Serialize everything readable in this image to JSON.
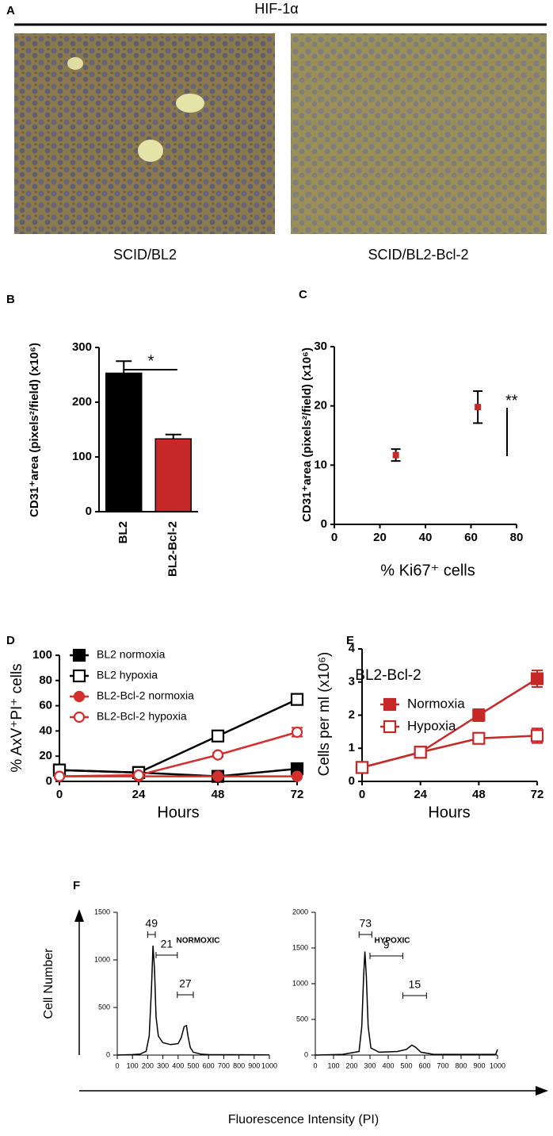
{
  "panel_a": {
    "letter": "A",
    "title": "HIF-1α",
    "captions": [
      "SCID/BL2",
      "SCID/BL2-Bcl-2"
    ]
  },
  "chart_data": [
    {
      "type": "bar",
      "panel": "B",
      "ylabel": "CD31⁺area (pixels²/field) (x10⁶)",
      "categories": [
        "BL2",
        "BL2-Bcl-2"
      ],
      "values": [
        253,
        133
      ],
      "errors": [
        22,
        8
      ],
      "colors": [
        "#000000",
        "#c62828"
      ],
      "ylim": [
        0,
        300
      ],
      "yticks": [
        0,
        100,
        200,
        300
      ],
      "significance": "*"
    },
    {
      "type": "scatter",
      "panel": "C",
      "xlabel": "% Ki67⁺ cells",
      "ylabel": "CD31⁺area (pixels²/field) (x10⁶)",
      "x": [
        27,
        63
      ],
      "values": [
        11.7,
        19.8
      ],
      "errors": [
        1,
        2.7
      ],
      "color": "#c62828",
      "xlim": [
        0,
        80
      ],
      "xticks": [
        0,
        20,
        40,
        60,
        80
      ],
      "ylim": [
        0,
        30
      ],
      "yticks": [
        0,
        10,
        20,
        30
      ],
      "significance": "**"
    },
    {
      "type": "line",
      "panel": "D",
      "xlabel": "Hours",
      "ylabel": "% AxV⁺PI⁺ cells",
      "x": [
        0,
        24,
        48,
        72
      ],
      "xlim": [
        0,
        72
      ],
      "xticks": [
        0,
        24,
        48,
        72
      ],
      "ylim": [
        0,
        100
      ],
      "yticks": [
        0,
        20,
        40,
        60,
        80,
        100
      ],
      "series": [
        {
          "name": "BL2 normoxia",
          "color": "#000000",
          "marker": "square",
          "filled": true,
          "values": [
            9,
            7,
            4,
            10
          ],
          "errors": [
            1,
            1,
            1,
            1.5
          ]
        },
        {
          "name": "BL2 hypoxia",
          "color": "#000000",
          "marker": "square",
          "filled": false,
          "values": [
            9,
            7,
            36,
            65
          ],
          "errors": [
            1,
            1,
            1.5,
            1.5
          ]
        },
        {
          "name": "BL2-Bcl-2 normoxia",
          "color": "#d32f2f",
          "marker": "circle",
          "filled": true,
          "values": [
            4,
            4,
            4,
            4
          ],
          "errors": [
            0.5,
            0.5,
            0.5,
            0.5
          ]
        },
        {
          "name": "BL2-Bcl-2 hypoxia",
          "color": "#d32f2f",
          "marker": "circle",
          "filled": false,
          "values": [
            4,
            5,
            21,
            39
          ],
          "errors": [
            0.5,
            0.5,
            1.5,
            3.5
          ]
        }
      ]
    },
    {
      "type": "line",
      "panel": "E",
      "title": "BL2-Bcl-2",
      "xlabel": "Hours",
      "ylabel": "Cells per ml (x10⁶)",
      "x": [
        0,
        24,
        48,
        72
      ],
      "xlim": [
        0,
        72
      ],
      "xticks": [
        0,
        24,
        48,
        72
      ],
      "ylim": [
        0,
        4
      ],
      "yticks": [
        0,
        1,
        2,
        3,
        4
      ],
      "series": [
        {
          "name": "Normoxia",
          "color": "#c62828",
          "marker": "square",
          "filled": true,
          "values": [
            0.42,
            0.88,
            2.0,
            3.1
          ],
          "errors": [
            0.05,
            0.05,
            0.18,
            0.25
          ]
        },
        {
          "name": "Hypoxia",
          "color": "#c62828",
          "marker": "square",
          "filled": false,
          "values": [
            0.42,
            0.88,
            1.3,
            1.38
          ],
          "errors": [
            0.05,
            0.05,
            0.12,
            0.22
          ]
        }
      ]
    },
    {
      "type": "line",
      "panel": "F",
      "title": "NORMOXIC",
      "xlabel": "Fluorescence Intensity (PI)",
      "ylabel": "Cell Number",
      "color": "#000000",
      "x": [
        0,
        100,
        150,
        190,
        210,
        225,
        235,
        245,
        255,
        270,
        300,
        350,
        400,
        420,
        440,
        455,
        465,
        480,
        500,
        550,
        600,
        1000
      ],
      "values": [
        0,
        5,
        10,
        40,
        200,
        700,
        1150,
        900,
        400,
        200,
        130,
        110,
        120,
        180,
        300,
        310,
        200,
        80,
        30,
        10,
        5,
        2
      ],
      "xlim": [
        0,
        1000
      ],
      "xticks": [
        0,
        100,
        200,
        300,
        400,
        500,
        600,
        700,
        800,
        900,
        1000
      ],
      "ylim": [
        0,
        1500
      ],
      "yticks": [
        0,
        500,
        1000,
        1500
      ],
      "gates": [
        {
          "value": 49,
          "range": [
            200,
            250
          ]
        },
        {
          "value": 21,
          "range": [
            255,
            395
          ]
        },
        {
          "value": 27,
          "range": [
            395,
            500
          ]
        }
      ]
    },
    {
      "type": "line",
      "title": "HYPOXIC",
      "color": "#000000",
      "x": [
        0,
        150,
        240,
        255,
        265,
        272,
        280,
        290,
        305,
        350,
        450,
        500,
        530,
        550,
        580,
        650,
        990,
        1000
      ],
      "values": [
        0,
        10,
        50,
        400,
        1100,
        1450,
        1100,
        400,
        100,
        40,
        50,
        80,
        140,
        110,
        40,
        10,
        10,
        80
      ],
      "xlim": [
        0,
        1000
      ],
      "xticks": [
        0,
        100,
        200,
        300,
        400,
        500,
        600,
        700,
        800,
        900,
        1000
      ],
      "ylim": [
        0,
        2000
      ],
      "yticks": [
        0,
        500,
        1000,
        1500,
        2000
      ],
      "gates": [
        {
          "value": 73,
          "range": [
            240,
            310
          ]
        },
        {
          "value": 9,
          "range": [
            300,
            480
          ]
        },
        {
          "value": 15,
          "range": [
            480,
            610
          ]
        }
      ]
    }
  ]
}
